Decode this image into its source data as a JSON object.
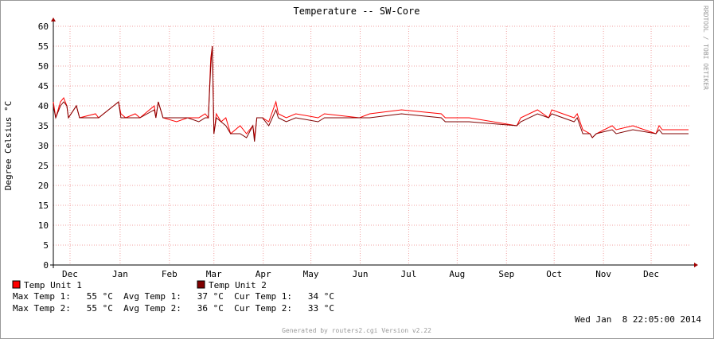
{
  "chart_data": {
    "type": "line",
    "title": "Temperature -- SW-Core",
    "y_label": "Degree Celsius °C",
    "x": [
      0,
      1.5,
      4.5,
      6.5,
      8.5,
      9.5,
      14.5,
      16.5,
      26.5,
      28.5,
      41,
      42.5,
      45.5,
      51.5,
      54.5,
      63.5,
      64.5,
      66,
      69,
      77.5,
      84.5,
      91.5,
      95.5,
      97.5,
      99,
      100,
      101,
      102.5,
      105.5,
      108.5,
      111.5,
      117.5,
      121.5,
      125.5,
      126.5,
      128,
      131.5,
      135.5,
      140,
      141.5,
      146.5,
      152.5,
      166.5,
      170.5,
      192.5,
      199,
      219,
      244,
      246.5,
      261.5,
      291.5,
      294,
      304.5,
      311.5,
      313.5,
      327.5,
      329.5,
      333,
      337.5,
      339,
      341.5,
      351.5,
      354,
      364.5,
      379,
      381,
      383,
      399.5
    ],
    "series": [
      {
        "name": "Temp Unit 1",
        "color": "#ff0000",
        "values": [
          41,
          37,
          41,
          42,
          40,
          37,
          40,
          37,
          38,
          37,
          41,
          38,
          37,
          38,
          37,
          40,
          37,
          41,
          37,
          36,
          37,
          37,
          38,
          37,
          52,
          55,
          33,
          38,
          36,
          37,
          33,
          35,
          33,
          35,
          32,
          37,
          37,
          36,
          41,
          38,
          37,
          38,
          37,
          38,
          37,
          38,
          39,
          38,
          37,
          37,
          35,
          37,
          39,
          37,
          39,
          37,
          38,
          34,
          33,
          32,
          33,
          35,
          34,
          35,
          33,
          35,
          34,
          34
        ]
      },
      {
        "name": "Temp Unit 2",
        "color": "#800000",
        "values": [
          40,
          37,
          40,
          41,
          40,
          37,
          40,
          37,
          37,
          37,
          41,
          37,
          37,
          37,
          37,
          39,
          37,
          41,
          37,
          37,
          37,
          36,
          37,
          37,
          50,
          55,
          33,
          37,
          36,
          35,
          33,
          33,
          32,
          35,
          31,
          37,
          37,
          35,
          39,
          37,
          36,
          37,
          36,
          37,
          37,
          37,
          38,
          37,
          36,
          36,
          35,
          36,
          38,
          37,
          38,
          36,
          37,
          33,
          33,
          32,
          33,
          34,
          33,
          34,
          33,
          34,
          33,
          33
        ]
      }
    ],
    "xlim": [
      0,
      400
    ],
    "xticks": [
      {
        "value": 10.5,
        "label": "Dec"
      },
      {
        "value": 42,
        "label": "Jan"
      },
      {
        "value": 73,
        "label": "Feb"
      },
      {
        "value": 101,
        "label": "Mar"
      },
      {
        "value": 132,
        "label": "Apr"
      },
      {
        "value": 162,
        "label": "May"
      },
      {
        "value": 193,
        "label": "Jun"
      },
      {
        "value": 223.5,
        "label": "Jul"
      },
      {
        "value": 254,
        "label": "Aug"
      },
      {
        "value": 285,
        "label": "Sep"
      },
      {
        "value": 315,
        "label": "Oct"
      },
      {
        "value": 346,
        "label": "Nov"
      },
      {
        "value": 376,
        "label": "Dec"
      }
    ],
    "ylim": [
      0,
      60
    ],
    "yticks": [
      0,
      5,
      10,
      15,
      20,
      25,
      30,
      35,
      40,
      45,
      50,
      55,
      60
    ],
    "grid": true,
    "stats": [
      "Max Temp 1:   55 °C  Avg Temp 1:   37 °C  Cur Temp 1:   34 °C",
      "Max Temp 2:   55 °C  Avg Temp 2:   36 °C  Cur Temp 2:   33 °C"
    ],
    "timestamp": "Wed Jan  8 22:05:00 2014",
    "footer": "Generated by routers2.cgi Version v2.22",
    "side_text": "RRDTOOL / TOBI OETIKER"
  }
}
